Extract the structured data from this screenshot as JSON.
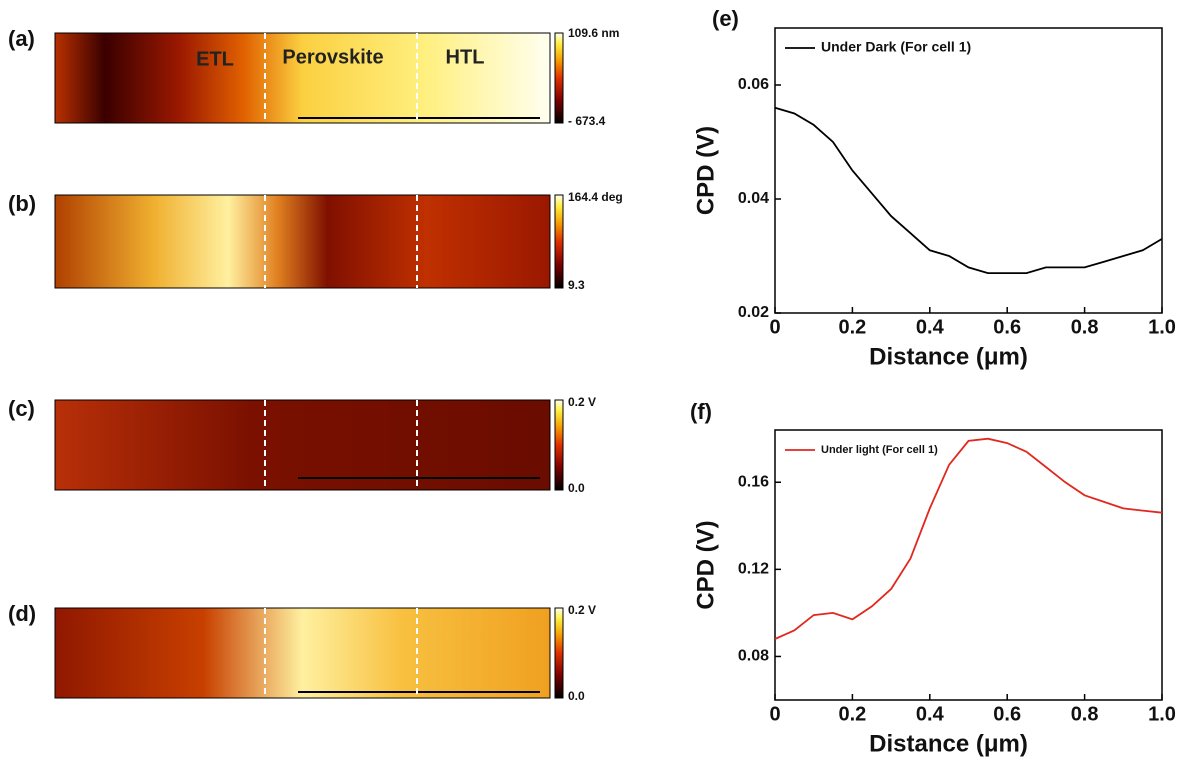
{
  "panels": [
    {
      "label": "(a)",
      "colorbar": [
        "109.6 nm",
        "- 673.4"
      ],
      "regions": [
        "ETL",
        "Perovskite",
        "HTL"
      ]
    },
    {
      "label": "(b)",
      "colorbar": [
        "164.4 deg",
        "9.3"
      ]
    },
    {
      "label": "(c)",
      "colorbar": [
        "0.2 V",
        "0.0"
      ]
    },
    {
      "label": "(d)",
      "colorbar": [
        "0.2 V",
        "0.0"
      ]
    }
  ],
  "chart_data": [
    {
      "type": "line",
      "label": "(e)",
      "y_label": "CPD (V)",
      "x_label": "Distance (μm)",
      "x": [
        0,
        0.05,
        0.1,
        0.15,
        0.2,
        0.25,
        0.3,
        0.35,
        0.4,
        0.45,
        0.5,
        0.55,
        0.6,
        0.65,
        0.7,
        0.75,
        0.8,
        0.85,
        0.9,
        0.95,
        1
      ],
      "series": [
        {
          "name": "Under Dark (For cell 1)",
          "color": "#000000",
          "values": [
            0.056,
            0.055,
            0.053,
            0.05,
            0.045,
            0.041,
            0.037,
            0.034,
            0.031,
            0.03,
            0.028,
            0.027,
            0.027,
            0.027,
            0.028,
            0.028,
            0.028,
            0.029,
            0.03,
            0.031,
            0.033
          ]
        }
      ],
      "xlim": [
        0,
        1
      ],
      "xticks": [
        0,
        0.2,
        0.4,
        0.6,
        0.8,
        {
          "value": 1,
          "label": "1.0"
        }
      ],
      "ylim": [
        0.02,
        0.07
      ],
      "yticks": [
        0.02,
        0.04,
        0.06
      ]
    },
    {
      "type": "line",
      "label": "(f)",
      "y_label": "CPD (V)",
      "x_label": "Distance (μm)",
      "x": [
        0,
        0.05,
        0.1,
        0.15,
        0.2,
        0.25,
        0.3,
        0.35,
        0.4,
        0.45,
        0.5,
        0.55,
        0.6,
        0.65,
        0.7,
        0.75,
        0.8,
        0.85,
        0.9,
        0.95,
        1
      ],
      "series": [
        {
          "name": "Under light (For cell 1)",
          "color": "#e0281e",
          "values": [
            0.088,
            0.092,
            0.099,
            0.1,
            0.097,
            0.103,
            0.111,
            0.125,
            0.148,
            0.168,
            0.179,
            0.18,
            0.178,
            0.174,
            0.167,
            0.16,
            0.154,
            0.151,
            0.148,
            0.147,
            0.146
          ]
        }
      ],
      "xlim": [
        0,
        1
      ],
      "xticks": [
        0,
        0.2,
        0.4,
        0.6,
        0.8,
        {
          "value": 1,
          "label": "1.0"
        }
      ],
      "ylim": [
        0.06,
        0.184
      ],
      "yticks": [
        0.08,
        0.12,
        0.16
      ]
    }
  ]
}
